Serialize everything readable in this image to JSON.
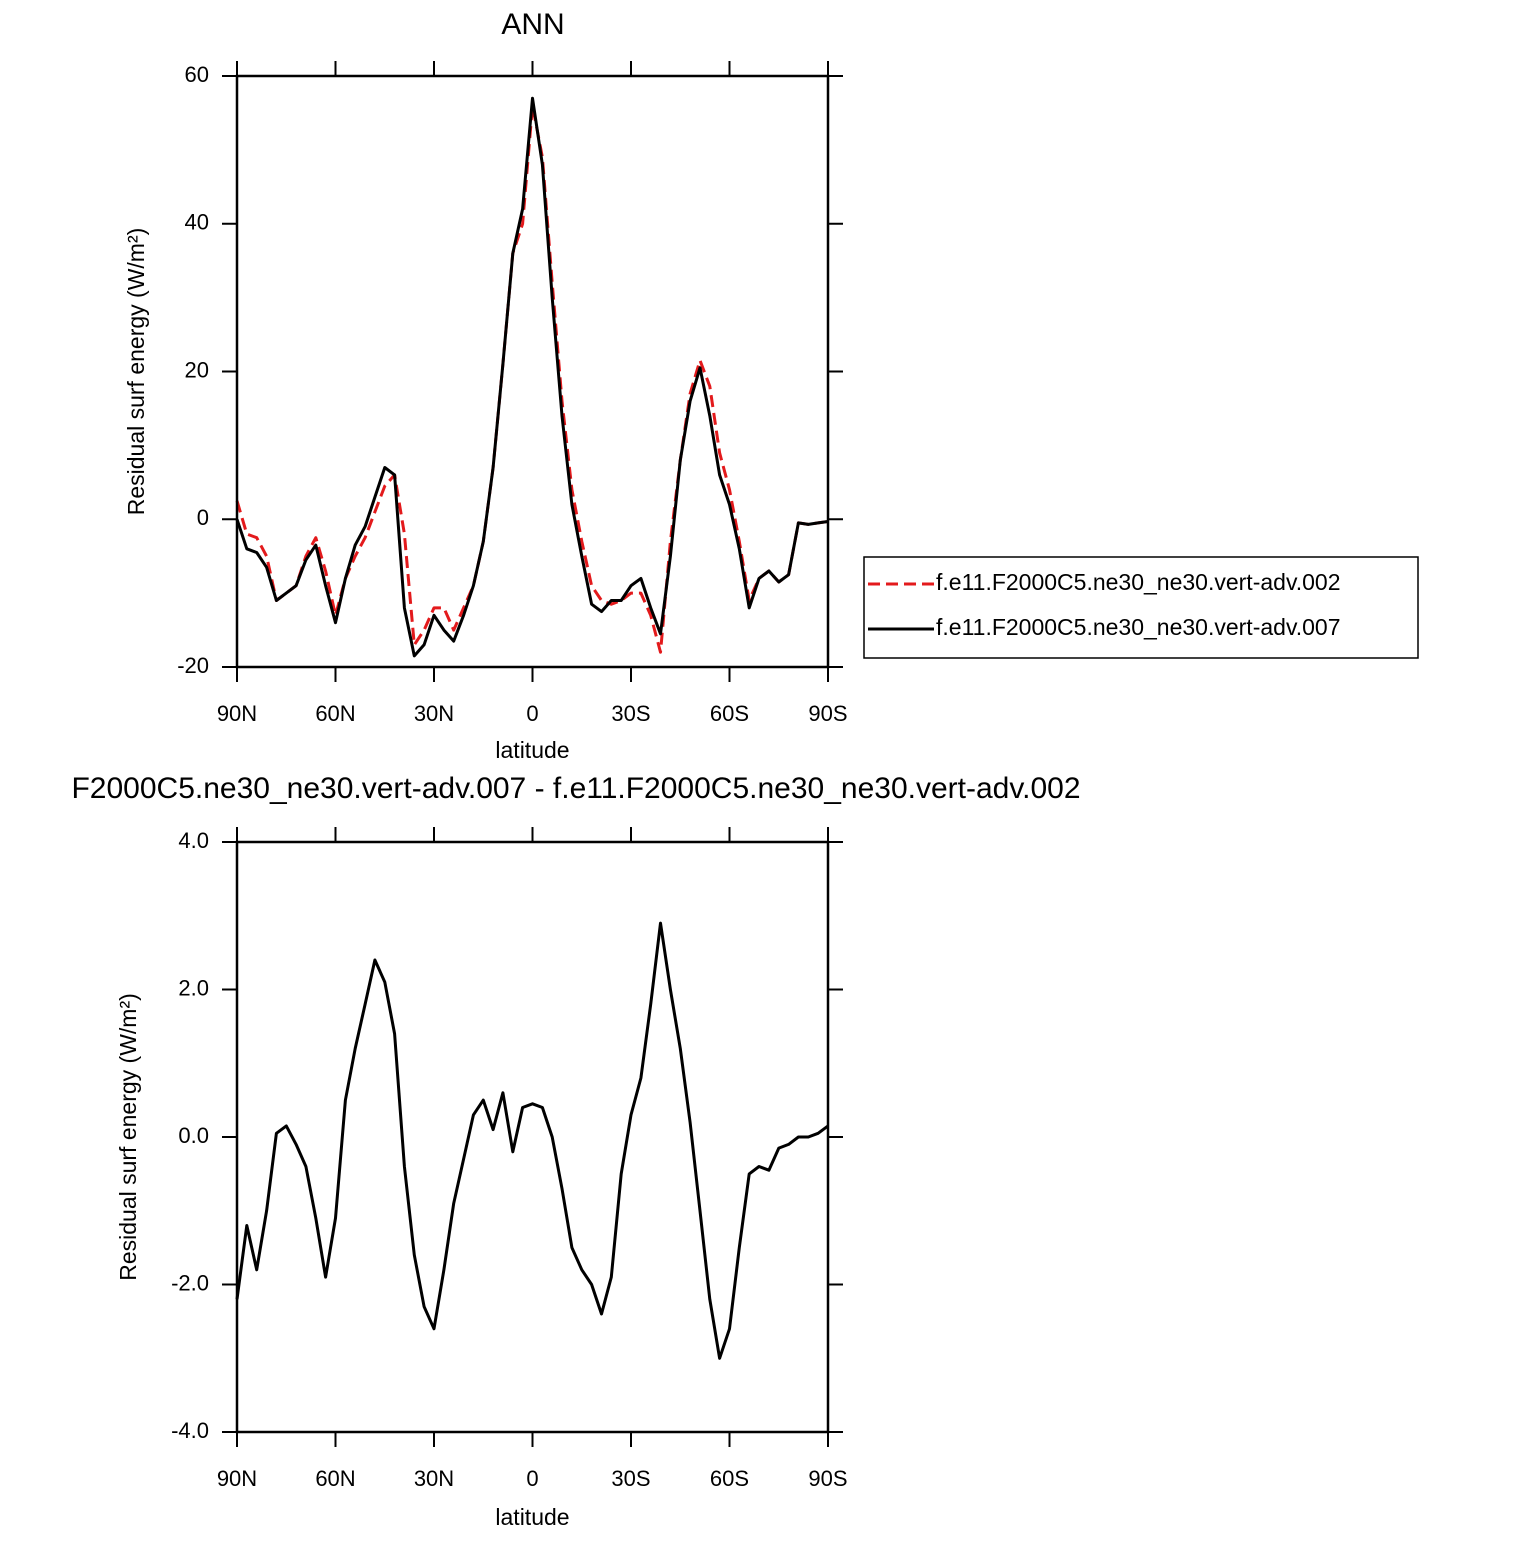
{
  "chart_data": [
    {
      "type": "line",
      "title": "ANN",
      "x_label": "latitude",
      "y_label": "Residual surf energy (W/m²)",
      "x": [
        90,
        87,
        84,
        81,
        78,
        75,
        72,
        69,
        66,
        63,
        60,
        57,
        54,
        51,
        48,
        45,
        42,
        39,
        36,
        33,
        30,
        27,
        24,
        21,
        18,
        15,
        12,
        9,
        6,
        3,
        0,
        -3,
        -6,
        -9,
        -12,
        -15,
        -18,
        -21,
        -24,
        -27,
        -30,
        -33,
        -36,
        -39,
        -42,
        -45,
        -48,
        -51,
        -54,
        -57,
        -60,
        -63,
        -66,
        -69,
        -72,
        -75,
        -78,
        -81,
        -84,
        -87,
        -90
      ],
      "series": [
        {
          "name": "f.e11.F2000C5.ne30_ne30.vert-adv.002",
          "color": "#e31a1c",
          "line_style": "dashed",
          "values": [
            2.5,
            -2,
            -2.5,
            -5,
            -11,
            -10,
            -9,
            -5,
            -2.5,
            -7,
            -13,
            -8,
            -5,
            -2.5,
            1,
            4.5,
            6,
            -2,
            -17,
            -15,
            -12,
            -12,
            -15,
            -12,
            -9,
            -3,
            7,
            21,
            36,
            40,
            56,
            49,
            32,
            16,
            4,
            -3,
            -9,
            -11,
            -11.5,
            -11,
            -10,
            -10,
            -13,
            -18,
            -3,
            8,
            17,
            21.5,
            18,
            9,
            4,
            -3,
            -11,
            -8,
            -7,
            -8.5,
            -7.5,
            -0.5,
            -0.7,
            -0.5,
            -0.3
          ]
        },
        {
          "name": "f.e11.F2000C5.ne30_ne30.vert-adv.007",
          "color": "#000000",
          "line_style": "solid",
          "values": [
            0,
            -4,
            -4.5,
            -6.5,
            -11,
            -10,
            -9,
            -5.5,
            -3.5,
            -9,
            -14,
            -8,
            -3.5,
            -1,
            3,
            7,
            6,
            -12,
            -18.5,
            -17,
            -13,
            -15,
            -16.5,
            -13,
            -9,
            -3,
            7,
            21,
            36,
            42,
            57,
            48,
            30,
            14,
            2,
            -5,
            -11.5,
            -12.5,
            -11,
            -11,
            -9,
            -8,
            -12,
            -15.5,
            -5,
            8,
            16,
            20.5,
            14,
            6,
            2,
            -4,
            -12,
            -8,
            -7,
            -8.5,
            -7.5,
            -0.5,
            -0.7,
            -0.5,
            -0.3
          ]
        }
      ],
      "xlim": [
        90,
        -90
      ],
      "xticks": [
        {
          "value": 90,
          "label": "90N"
        },
        {
          "value": 60,
          "label": "60N"
        },
        {
          "value": 30,
          "label": "30N"
        },
        0,
        {
          "value": -30,
          "label": "30S"
        },
        {
          "value": -60,
          "label": "60S"
        },
        {
          "value": -90,
          "label": "90S"
        }
      ],
      "ylim": [
        -20,
        60
      ],
      "yticks": [
        -20,
        0,
        20,
        40,
        60
      ],
      "legend": "right"
    },
    {
      "type": "line",
      "title": "F2000C5.ne30_ne30.vert-adv.007 - f.e11.F2000C5.ne30_ne30.vert-adv.002",
      "x_label": "latitude",
      "y_label": "Residual surf energy (W/m²)",
      "x": [
        90,
        87,
        84,
        81,
        78,
        75,
        72,
        69,
        66,
        63,
        60,
        57,
        54,
        51,
        48,
        45,
        42,
        39,
        36,
        33,
        30,
        27,
        24,
        21,
        18,
        15,
        12,
        9,
        6,
        3,
        0,
        -3,
        -6,
        -9,
        -12,
        -15,
        -18,
        -21,
        -24,
        -27,
        -30,
        -33,
        -36,
        -39,
        -42,
        -45,
        -48,
        -51,
        -54,
        -57,
        -60,
        -63,
        -66,
        -69,
        -72,
        -75,
        -78,
        -81,
        -84,
        -87,
        -90
      ],
      "series": [
        {
          "color": "#000000",
          "line_style": "solid",
          "values": [
            -2.2,
            -1.2,
            -1.8,
            -1.0,
            0.05,
            0.15,
            -0.1,
            -0.4,
            -1.1,
            -1.9,
            -1.1,
            0.5,
            1.2,
            1.8,
            2.4,
            2.1,
            1.4,
            -0.4,
            -1.6,
            -2.3,
            -2.6,
            -1.8,
            -0.9,
            -0.3,
            0.3,
            0.5,
            0.1,
            0.6,
            -0.2,
            0.4,
            0.45,
            0.4,
            0,
            -0.7,
            -1.5,
            -1.8,
            -2.0,
            -2.4,
            -1.9,
            -0.5,
            0.3,
            0.8,
            1.8,
            2.9,
            2.0,
            1.2,
            0.2,
            -1.0,
            -2.2,
            -3.0,
            -2.6,
            -1.5,
            -0.5,
            -0.4,
            -0.45,
            -0.15,
            -0.1,
            0.0,
            0.0,
            0.05,
            0.15
          ]
        }
      ],
      "xlim": [
        90,
        -90
      ],
      "xticks": [
        {
          "value": 90,
          "label": "90N"
        },
        {
          "value": 60,
          "label": "60N"
        },
        {
          "value": 30,
          "label": "30N"
        },
        0,
        {
          "value": -30,
          "label": "30S"
        },
        {
          "value": -60,
          "label": "60S"
        },
        {
          "value": -90,
          "label": "90S"
        }
      ],
      "ylim": [
        -4,
        4
      ],
      "yticks": [
        {
          "value": -4,
          "label": "-4.0"
        },
        {
          "value": -2,
          "label": "-2.0"
        },
        {
          "value": 0,
          "label": "0.0"
        },
        {
          "value": 2,
          "label": "2.0"
        },
        {
          "value": 4,
          "label": "4.0"
        }
      ]
    }
  ]
}
